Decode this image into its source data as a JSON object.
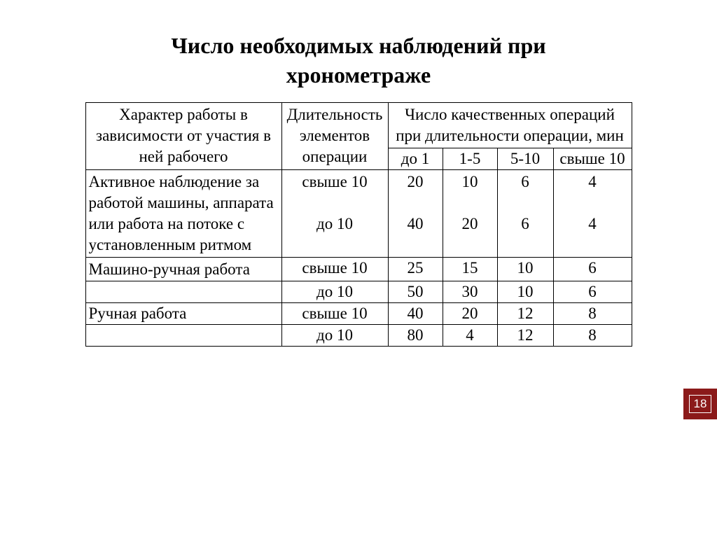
{
  "title_line1": "Число необходимых наблюдений при",
  "title_line2": "хронометраже",
  "header": {
    "col1": "Характер работы в зависимости от участия в ней рабочего",
    "col2": "Длительность элементов операции",
    "col3_group": "Число качественных операций при длительности операции, мин",
    "sub1": "до 1",
    "sub2": "1-5",
    "sub3": "5-10",
    "sub4": "свыше 10"
  },
  "rows": {
    "r1": {
      "char": "Активное наблюдение за работой машины, аппарата или работа на потоке с установленным ритмом",
      "dur1": "свыше 10",
      "dur2": "до 10",
      "a1": "20",
      "b1": "10",
      "c1": "6",
      "d1": "4",
      "a2": "40",
      "b2": "20",
      "c2": "6",
      "d2": "4"
    },
    "r2": {
      "char": "Машино-ручная работа",
      "dur": "свыше 10",
      "a": "25",
      "b": "15",
      "c": "10",
      "d": "6"
    },
    "r3": {
      "char": "",
      "dur": "до 10",
      "a": "50",
      "b": "30",
      "c": "10",
      "d": "6"
    },
    "r4": {
      "char": "Ручная работа",
      "dur": "свыше 10",
      "a": "40",
      "b": "20",
      "c": "12",
      "d": "8"
    },
    "r5": {
      "char": "",
      "dur": "до 10",
      "a": "80",
      "b": "4",
      "c": "12",
      "d": "8"
    }
  },
  "page_number": "18",
  "colors": {
    "badge_bg": "#8b1a1a",
    "badge_text": "#ffffff",
    "text": "#000000",
    "bg": "#ffffff",
    "border": "#000000"
  }
}
